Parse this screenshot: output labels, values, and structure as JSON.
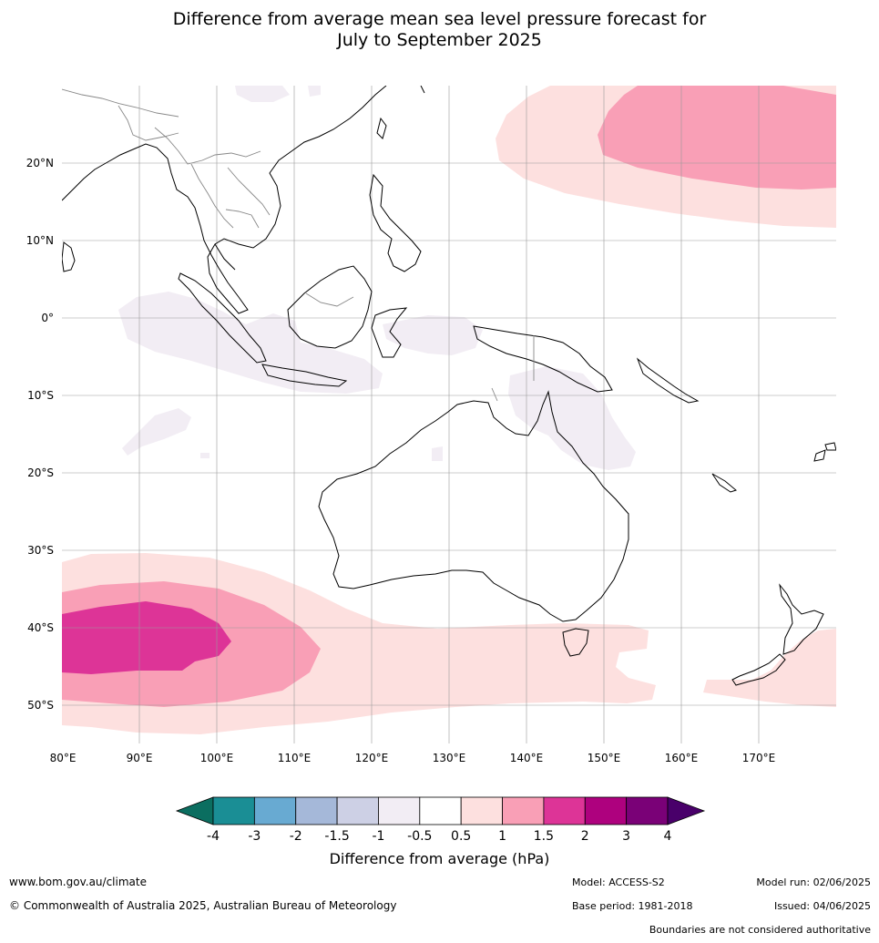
{
  "title_line1": "Difference from average mean sea level pressure forecast for",
  "title_line2": "July to September 2025",
  "lat_labels": [
    "20°N",
    "10°N",
    "0°",
    "10°S",
    "20°S",
    "30°S",
    "40°S",
    "50°S"
  ],
  "lon_labels": [
    "80°E",
    "90°E",
    "100°E",
    "110°E",
    "120°E",
    "130°E",
    "140°E",
    "150°E",
    "160°E",
    "170°E"
  ],
  "colorbar": {
    "ticks": [
      "-4",
      "-3",
      "-2",
      "-1.5",
      "-1",
      "-0.5",
      "0.5",
      "1",
      "1.5",
      "2",
      "3",
      "4"
    ],
    "colors": [
      "#1a8e95",
      "#68aad2",
      "#a5b8d9",
      "#cdd0e5",
      "#f2edf4",
      "#ffffff",
      "#fde0df",
      "#f99fb6",
      "#dd3497",
      "#ae017e",
      "#7a0177"
    ],
    "under_color": "#0b6e60",
    "over_color": "#49006a",
    "title": "Difference from average (hPa)"
  },
  "footer": {
    "website": "www.bom.gov.au/climate",
    "copyright": "© Commonwealth of Australia 2025, Australian Bureau of Meteorology",
    "model": "Model: ACCESS-S2",
    "base_period": "Base period: 1981-2018",
    "model_run": "Model run: 02/06/2025",
    "issued": "Issued: 04/06/2025",
    "disclaimer": "Boundaries are not considered authoritative"
  }
}
